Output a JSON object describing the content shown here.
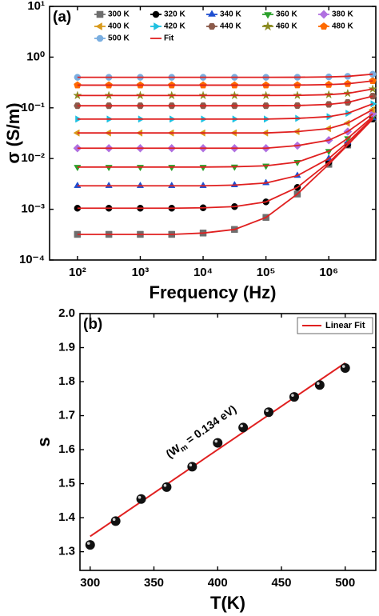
{
  "chart_data": [
    {
      "type": "line",
      "panel_label": "(a)",
      "xlabel": "Frequency (Hz)",
      "ylabel": "σ (S/m)",
      "xscale": "log",
      "yscale": "log",
      "x": [
        100,
        316,
        1000,
        3162,
        10000,
        31623,
        100000,
        316228,
        1000000,
        2000000,
        5000000
      ],
      "xlim": [
        36,
        5600000
      ],
      "ylim": [
        0.0001,
        10
      ],
      "xticks": [
        {
          "value": 100,
          "label": "10²"
        },
        {
          "value": 1000,
          "label": "10³"
        },
        {
          "value": 10000,
          "label": "10⁴"
        },
        {
          "value": 100000,
          "label": "10⁵"
        },
        {
          "value": 1000000,
          "label": "10⁶"
        }
      ],
      "yticks": [
        {
          "value": 0.0001,
          "label": "10⁻⁴"
        },
        {
          "value": 0.001,
          "label": "10⁻³"
        },
        {
          "value": 0.01,
          "label": "10⁻²"
        },
        {
          "value": 0.1,
          "label": "10⁻¹"
        },
        {
          "value": 1,
          "label": "10⁰"
        },
        {
          "value": 10,
          "label": "10¹"
        }
      ],
      "legend": "top",
      "fit": {
        "name": "Fit",
        "color": "#e02020"
      },
      "series": [
        {
          "name": "300 K",
          "color": "#6e6e6e",
          "marker": "square",
          "values": [
            0.00032,
            0.00032,
            0.00032,
            0.00032,
            0.00034,
            0.0004,
            0.00069,
            0.002,
            0.0077,
            0.0185,
            0.06
          ]
        },
        {
          "name": "320 K",
          "color": "#000000",
          "marker": "circle",
          "values": [
            0.00105,
            0.00105,
            0.00105,
            0.00105,
            0.00107,
            0.00113,
            0.0014,
            0.0027,
            0.0084,
            0.019,
            0.061
          ]
        },
        {
          "name": "340 K",
          "color": "#1f4fd0",
          "marker": "triangle-up",
          "values": [
            0.0029,
            0.0029,
            0.0029,
            0.0029,
            0.0029,
            0.003,
            0.0033,
            0.0046,
            0.01,
            0.021,
            0.063
          ]
        },
        {
          "name": "360 K",
          "color": "#2ca02c",
          "marker": "triangle-down",
          "values": [
            0.0068,
            0.0068,
            0.0068,
            0.0068,
            0.0068,
            0.0069,
            0.0072,
            0.0085,
            0.014,
            0.025,
            0.067
          ]
        },
        {
          "name": "380 K",
          "color": "#b070e0",
          "marker": "diamond",
          "values": [
            0.016,
            0.016,
            0.016,
            0.016,
            0.016,
            0.016,
            0.016,
            0.018,
            0.023,
            0.034,
            0.076
          ]
        },
        {
          "name": "400 K",
          "color": "#d89a1c",
          "marker": "triangle-left",
          "values": [
            0.032,
            0.032,
            0.032,
            0.032,
            0.032,
            0.032,
            0.032,
            0.034,
            0.039,
            0.05,
            0.092
          ]
        },
        {
          "name": "420 K",
          "color": "#20c0e0",
          "marker": "triangle-right",
          "values": [
            0.06,
            0.06,
            0.06,
            0.06,
            0.06,
            0.06,
            0.06,
            0.062,
            0.067,
            0.078,
            0.12
          ]
        },
        {
          "name": "440 K",
          "color": "#8b5a4a",
          "marker": "hexagon",
          "values": [
            0.11,
            0.11,
            0.11,
            0.11,
            0.11,
            0.11,
            0.11,
            0.111,
            0.117,
            0.128,
            0.17
          ]
        },
        {
          "name": "460 K",
          "color": "#8b8b20",
          "marker": "star",
          "values": [
            0.175,
            0.175,
            0.175,
            0.175,
            0.175,
            0.175,
            0.175,
            0.176,
            0.182,
            0.193,
            0.235
          ]
        },
        {
          "name": "480 K",
          "color": "#ff6a00",
          "marker": "pentagon",
          "values": [
            0.28,
            0.28,
            0.28,
            0.28,
            0.28,
            0.28,
            0.28,
            0.281,
            0.287,
            0.298,
            0.34
          ]
        },
        {
          "name": "500 K",
          "color": "#7aaee0",
          "marker": "circle",
          "values": [
            0.4,
            0.4,
            0.4,
            0.4,
            0.4,
            0.4,
            0.4,
            0.401,
            0.407,
            0.418,
            0.46
          ]
        }
      ]
    },
    {
      "type": "scatter",
      "panel_label": "(b)",
      "xlabel": "T(K)",
      "ylabel": "s",
      "x": [
        300,
        320,
        340,
        360,
        380,
        400,
        420,
        440,
        460,
        480,
        500
      ],
      "values": [
        1.32,
        1.39,
        1.455,
        1.49,
        1.55,
        1.62,
        1.665,
        1.71,
        1.755,
        1.79,
        1.84
      ],
      "color": "#111111",
      "xlim": [
        292,
        524
      ],
      "ylim": [
        1.245,
        2.0
      ],
      "xticks": [
        300,
        350,
        400,
        450,
        500
      ],
      "yticks": [
        1.3,
        1.4,
        1.5,
        1.6,
        1.7,
        1.8,
        1.9,
        {
          "value": 2,
          "label": "2.0"
        }
      ],
      "legend": "top-right",
      "fit": {
        "name": "Linear Fit",
        "color": "#e02020",
        "x": [
          300,
          500
        ],
        "values": [
          1.345,
          1.855
        ]
      },
      "annotation": {
        "prefix": "(W",
        "sub": "m",
        "suffix": " = 0.134 eV)"
      }
    }
  ]
}
